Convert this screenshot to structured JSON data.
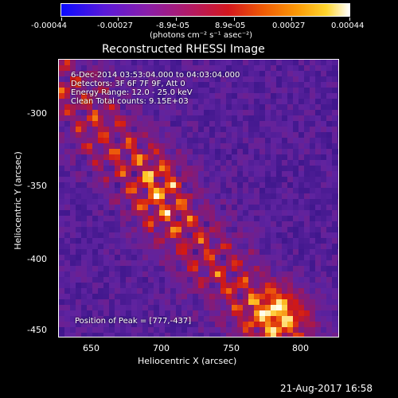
{
  "colorbar": {
    "ticks": [
      "-0.00044",
      "-0.00027",
      "-8.9e-05",
      "8.9e-05",
      "0.00027",
      "0.00044"
    ],
    "unit_label": "(photons cm⁻² s⁻¹ asec⁻²)"
  },
  "plot": {
    "title": "Reconstructed RHESSI Image",
    "xlabel": "Heliocentric X (arcsec)",
    "ylabel": "Heliocentric Y (arcsec)",
    "xticks": [
      "650",
      "700",
      "750",
      "800"
    ],
    "yticks": [
      "-300",
      "-350",
      "-400",
      "-450"
    ],
    "info": {
      "time": "6-Dec-2014 03:53:04.000 to 04:03:04.000",
      "detectors": "Detectors: 3F 6F 7F 9F, Att 0",
      "energy": "Energy Range: 12.0 - 25.0 keV",
      "method": "Clean     Total counts: 9.15E+03"
    },
    "peak": "Position of Peak = [777,-437]"
  },
  "footer": {
    "date": "21-Aug-2017 16:58"
  },
  "colors": {
    "low": "#0b0bff",
    "mid": "#d4171e",
    "high": "#ffffff",
    "background": "#000000"
  }
}
